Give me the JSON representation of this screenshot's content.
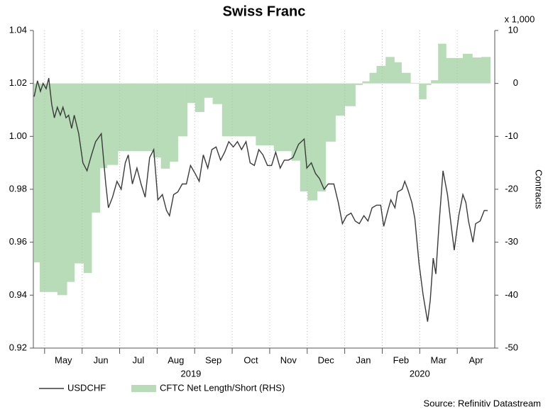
{
  "chart_data": {
    "type": "line",
    "title": "Swiss Franc",
    "xlim": [
      -0.3,
      12
    ],
    "xticks": [
      {
        "value": 0,
        "label": "May"
      },
      {
        "value": 1,
        "label": "Jun"
      },
      {
        "value": 2,
        "label": "Jul"
      },
      {
        "value": 3,
        "label": "Aug"
      },
      {
        "value": 4,
        "label": "Sep"
      },
      {
        "value": 5,
        "label": "Oct"
      },
      {
        "value": 6,
        "label": "Nov"
      },
      {
        "value": 7,
        "label": "Dec"
      },
      {
        "value": 8,
        "label": "Jan"
      },
      {
        "value": 9,
        "label": "Feb"
      },
      {
        "value": 10,
        "label": "Mar"
      },
      {
        "value": 11,
        "label": "Apr"
      }
    ],
    "x_group_labels": [
      {
        "value": 3.9,
        "label": "2019"
      },
      {
        "value": 10,
        "label": "2020"
      }
    ],
    "ylim": [
      0.92,
      1.04
    ],
    "yticks": [
      0.92,
      0.94,
      0.96,
      0.98,
      {
        "value": 1,
        "label": "1.00"
      },
      1.02,
      1.04
    ],
    "y2lim": [
      -50,
      10
    ],
    "y2ticks": [
      -50,
      -40,
      -30,
      -20,
      -10,
      0,
      10
    ],
    "y2label": "Contracts",
    "y2_multiplier_label": "x 1,000",
    "grid": true,
    "source": "Source: Refinitiv Datastream",
    "series": [
      {
        "name": "USDCHF",
        "color": "#3a3a3a",
        "type": "line",
        "x": [
          -0.28,
          -0.19,
          -0.11,
          -0.04,
          0.04,
          0.11,
          0.19,
          0.26,
          0.34,
          0.42,
          0.49,
          0.57,
          0.64,
          0.72,
          0.79,
          0.91,
          1.02,
          1.13,
          1.25,
          1.36,
          1.51,
          1.63,
          1.7,
          1.81,
          1.93,
          2.04,
          2.15,
          2.23,
          2.34,
          2.46,
          2.57,
          2.68,
          2.8,
          2.91,
          3.02,
          3.14,
          3.25,
          3.33,
          3.44,
          3.55,
          3.67,
          3.78,
          3.89,
          4.01,
          4.12,
          4.23,
          4.35,
          4.46,
          4.57,
          4.69,
          4.8,
          4.91,
          5.03,
          5.14,
          5.25,
          5.37,
          5.48,
          5.59,
          5.71,
          5.82,
          5.94,
          6.05,
          6.16,
          6.28,
          6.39,
          6.5,
          6.62,
          6.77,
          6.92,
          6.99,
          7.11,
          7.22,
          7.33,
          7.45,
          7.56,
          7.71,
          7.83,
          7.94,
          8.05,
          8.17,
          8.28,
          8.39,
          8.51,
          8.62,
          8.73,
          8.85,
          8.96,
          9.04,
          9.15,
          9.23,
          9.34,
          9.41,
          9.53,
          9.6,
          9.68,
          9.79,
          9.87,
          9.98,
          10.09,
          10.21,
          10.28,
          10.36,
          10.43,
          10.51,
          10.62,
          10.74,
          10.85,
          10.92,
          11.04,
          11.15,
          11.23,
          11.3,
          11.42,
          11.49,
          11.61,
          11.72,
          11.81
        ],
        "values": [
          1.015,
          1.021,
          1.017,
          1.02,
          1.018,
          1.022,
          1.012,
          1.007,
          1.011,
          1.008,
          1.011,
          1.007,
          1.008,
          1.003,
          1.008,
          1.001,
          0.99,
          0.987,
          0.993,
          0.998,
          1.001,
          0.982,
          0.973,
          0.977,
          0.983,
          0.98,
          0.99,
          0.993,
          0.982,
          0.988,
          0.982,
          0.977,
          0.992,
          0.995,
          0.976,
          0.978,
          0.972,
          0.97,
          0.978,
          0.979,
          0.982,
          0.982,
          0.989,
          0.986,
          0.983,
          0.993,
          0.988,
          0.995,
          0.996,
          0.991,
          0.994,
          0.998,
          0.996,
          0.998,
          0.995,
          0.998,
          0.99,
          0.989,
          0.995,
          0.993,
          0.989,
          0.989,
          0.994,
          0.988,
          0.991,
          0.991,
          0.992,
          0.997,
          0.999,
          0.988,
          0.99,
          0.986,
          0.984,
          0.98,
          0.982,
          0.982,
          0.975,
          0.967,
          0.97,
          0.971,
          0.968,
          0.967,
          0.97,
          0.968,
          0.973,
          0.974,
          0.974,
          0.966,
          0.972,
          0.976,
          0.973,
          0.979,
          0.98,
          0.983,
          0.98,
          0.975,
          0.969,
          0.952,
          0.94,
          0.93,
          0.938,
          0.954,
          0.948,
          0.966,
          0.987,
          0.978,
          0.965,
          0.957,
          0.97,
          0.978,
          0.975,
          0.968,
          0.96,
          0.967,
          0.968,
          0.972,
          0.972
        ]
      },
      {
        "name": "CFTC Net Length/Short (RHS)",
        "color": "#b7dcb7",
        "type": "step_area",
        "axis": "y2",
        "x": [
          -0.28,
          -0.13,
          0.34,
          0.59,
          0.79,
          1.04,
          1.25,
          1.47,
          1.66,
          1.95,
          2.42,
          2.89,
          3.1,
          3.33,
          3.55,
          3.8,
          4.01,
          4.25,
          4.48,
          4.73,
          5.63,
          6.11,
          6.58,
          6.81,
          7.01,
          7.26,
          7.49,
          7.75,
          8.0,
          8.28,
          8.47,
          8.66,
          8.85,
          9.09,
          9.32,
          9.51,
          9.75,
          9.98,
          10.17,
          10.3,
          10.49,
          10.7,
          11.15,
          11.4,
          11.64
        ],
        "values": [
          -33.8,
          -39.4,
          -40,
          -37.5,
          -34,
          -35.8,
          -24.4,
          -16,
          -15.4,
          -12.8,
          -12.8,
          -14,
          -16.1,
          -14.8,
          -10,
          -3.7,
          -5.4,
          -2.7,
          -3.9,
          -10,
          -11.7,
          -12.8,
          -14.6,
          -20.4,
          -22.1,
          -20.4,
          -11,
          -6.1,
          -4.3,
          -0.3,
          0.4,
          2,
          3.3,
          5,
          4,
          2,
          0.1,
          -3,
          -0.3,
          0.6,
          7.5,
          4.8,
          5.6,
          4.9,
          5
        ]
      }
    ]
  }
}
